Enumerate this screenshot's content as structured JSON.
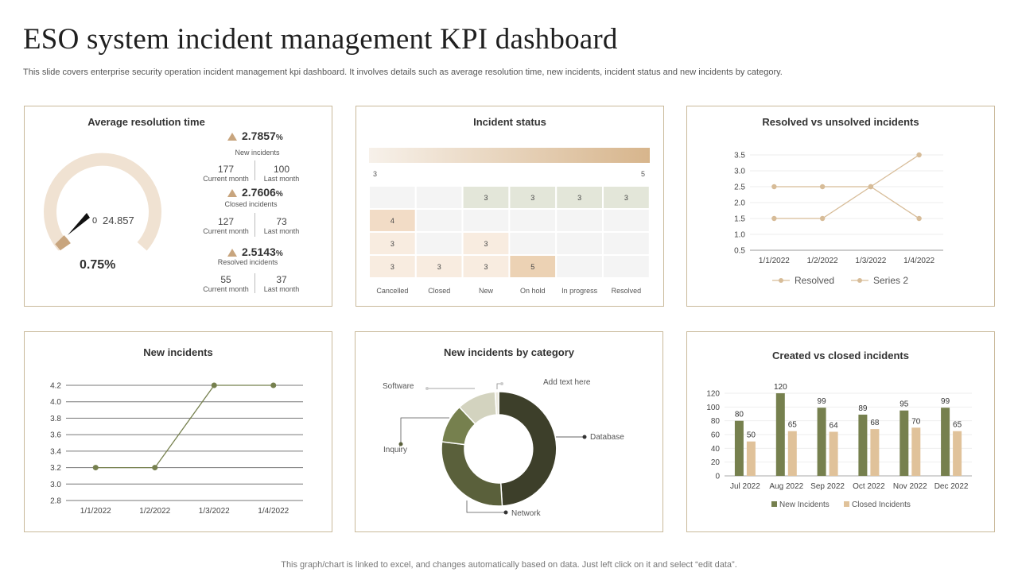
{
  "header": {
    "title": "ESO system incident management KPI dashboard",
    "subtitle": "This slide covers enterprise security operation incident management kpi dashboard. It involves details such as average resolution time, new incidents, incident status and new incidents by category.",
    "footer": "This graph/chart is linked to excel,  and changes automatically based on data. Just left click on it and select “edit data”."
  },
  "colors": {
    "accent": "#c8a57e",
    "olive": "#76804e",
    "dark_olive": "#3d3f2a",
    "tan": "#e0c29a",
    "beige": "#f0e2d2"
  },
  "avg_resolution": {
    "title": "Average resolution time",
    "gauge_value": "24.857",
    "gauge_min": "0",
    "gauge_pct": "0.75%",
    "gauge_fraction": 0.0075,
    "kpis": [
      {
        "pct": "2.7857",
        "unit": "%",
        "label": "New incidents",
        "current_value": "177",
        "current_label": "Current month",
        "last_value": "100",
        "last_label": "Last month"
      },
      {
        "pct": "2.7606",
        "unit": "%",
        "label": "Closed incidents",
        "current_value": "127",
        "current_label": "Current month",
        "last_value": "73",
        "last_label": "Last month"
      },
      {
        "pct": "2.5143",
        "unit": "%",
        "label": "Resolved incidents",
        "current_value": "55",
        "current_label": "Current month",
        "last_value": "37",
        "last_label": "Last month"
      }
    ]
  },
  "incident_status": {
    "title": "Incident status",
    "scale_min": "3",
    "scale_max": "5"
  },
  "resolved_vs_unsolved": {
    "title": "Resolved vs unsolved incidents"
  },
  "new_incidents": {
    "title": "New incidents"
  },
  "by_category": {
    "title": "New incidents by category",
    "labels": {
      "software": "Software",
      "addtext": "Add text here",
      "database": "Database",
      "inquiry": "Inquiry",
      "network": "Network"
    }
  },
  "created_vs_closed": {
    "title": "Created vs closed incidents"
  },
  "chart_data": [
    {
      "type": "heatmap",
      "id": "incident_status",
      "columns": [
        "Cancelled",
        "Closed",
        "New",
        "On hold",
        "In progress",
        "Resolved"
      ],
      "rows": [
        [
          null,
          null,
          3,
          3,
          3,
          3
        ],
        [
          4,
          null,
          null,
          null,
          null,
          null
        ],
        [
          3,
          null,
          3,
          null,
          null,
          null
        ],
        [
          3,
          3,
          3,
          5,
          null,
          null
        ]
      ],
      "vmin": 3,
      "vmax": 5
    },
    {
      "type": "line",
      "id": "resolved_vs_unsolved",
      "categories": [
        "1/1/2022",
        "1/2/2022",
        "1/3/2022",
        "1/4/2022"
      ],
      "series": [
        {
          "name": "Resolved",
          "values": [
            2.5,
            2.5,
            2.5,
            1.5
          ]
        },
        {
          "name": "Series 2",
          "values": [
            1.5,
            1.5,
            2.5,
            3.5
          ]
        }
      ],
      "ylim": [
        0.5,
        3.5
      ],
      "yticks": [
        "0.5",
        "1.0",
        "1.5",
        "2.0",
        "2.5",
        "3.0",
        "3.5"
      ],
      "legend": "bottom"
    },
    {
      "type": "line",
      "id": "new_incidents",
      "categories": [
        "1/1/2022",
        "1/2/2022",
        "1/3/2022",
        "1/4/2022"
      ],
      "series": [
        {
          "name": "New incidents",
          "values": [
            3.2,
            3.2,
            4.2,
            4.2
          ]
        }
      ],
      "ylim": [
        2.8,
        4.2
      ],
      "yticks": [
        "2.8",
        "3.0",
        "3.2",
        "3.4",
        "3.6",
        "3.8",
        "4.0",
        "4.2"
      ]
    },
    {
      "type": "pie",
      "id": "by_category",
      "donut": true,
      "slices": [
        {
          "name": "Database",
          "value": 49,
          "color": "#3d3f2a"
        },
        {
          "name": "Network",
          "value": 28,
          "color": "#5a603b"
        },
        {
          "name": "Inquiry",
          "value": 11,
          "color": "#76804e"
        },
        {
          "name": "Software",
          "value": 11,
          "color": "#d3d3bf"
        },
        {
          "name": "Add text here",
          "value": 1,
          "color": "#eceadf"
        }
      ]
    },
    {
      "type": "bar",
      "id": "created_vs_closed",
      "categories": [
        "Jul 2022",
        "Aug 2022",
        "Sep 2022",
        "Oct 2022",
        "Nov 2022",
        "Dec 2022"
      ],
      "series": [
        {
          "name": "New Incidents",
          "values": [
            80,
            120,
            99,
            89,
            95,
            99
          ],
          "color": "#76804e"
        },
        {
          "name": "Closed Incidents",
          "values": [
            50,
            65,
            64,
            68,
            70,
            65
          ],
          "color": "#e0c29a"
        }
      ],
      "ylim": [
        0,
        120
      ],
      "yticks": [
        "0",
        "20",
        "40",
        "60",
        "80",
        "100",
        "120"
      ],
      "legend": "bottom"
    }
  ]
}
